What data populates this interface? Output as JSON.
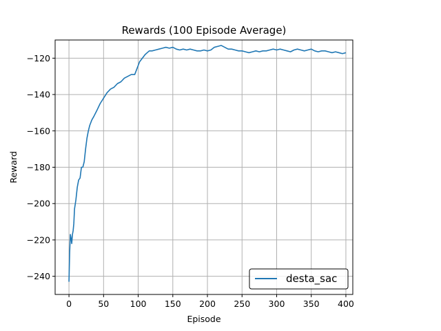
{
  "chart_data": {
    "type": "line",
    "title": "Rewards (100 Episode Average)",
    "xlabel": "Episode",
    "ylabel": "Reward",
    "xlim": [
      -20,
      410
    ],
    "ylim": [
      -250,
      -110
    ],
    "xticks": [
      0,
      50,
      100,
      150,
      200,
      250,
      300,
      350,
      400
    ],
    "yticks": [
      -240,
      -220,
      -200,
      -180,
      -160,
      -140,
      -120
    ],
    "xtick_labels": [
      "0",
      "50",
      "100",
      "150",
      "200",
      "250",
      "300",
      "350",
      "400"
    ],
    "ytick_labels": [
      "−240",
      "−220",
      "−200",
      "−180",
      "−160",
      "−140",
      "−120"
    ],
    "grid": true,
    "legend_position": "lower-right",
    "series": [
      {
        "name": "desta_sac",
        "color": "#1f77b4",
        "x": [
          0,
          1,
          2,
          3,
          4,
          5,
          6,
          7,
          8,
          10,
          12,
          14,
          16,
          18,
          20,
          22,
          24,
          26,
          28,
          30,
          33,
          36,
          40,
          45,
          50,
          55,
          60,
          65,
          70,
          75,
          80,
          85,
          90,
          95,
          98,
          100,
          102,
          104,
          106,
          108,
          110,
          113,
          116,
          120,
          125,
          130,
          135,
          140,
          145,
          150,
          155,
          160,
          165,
          170,
          175,
          180,
          185,
          190,
          195,
          200,
          205,
          210,
          215,
          220,
          225,
          230,
          235,
          240,
          245,
          250,
          255,
          260,
          265,
          270,
          275,
          280,
          285,
          290,
          295,
          300,
          305,
          310,
          315,
          320,
          325,
          330,
          335,
          340,
          345,
          350,
          355,
          360,
          365,
          370,
          375,
          380,
          385,
          390,
          395,
          400
        ],
        "values": [
          -243,
          -227,
          -217,
          -219,
          -222,
          -217,
          -215,
          -211,
          -203,
          -198,
          -191,
          -187,
          -186,
          -180,
          -180,
          -177,
          -170,
          -164,
          -160,
          -157,
          -154,
          -152,
          -149,
          -145,
          -142,
          -139,
          -137,
          -136,
          -134,
          -133,
          -131,
          -130,
          -129,
          -129,
          -126,
          -124,
          -122,
          -121,
          -120,
          -119,
          -118,
          -117,
          -116,
          -116,
          -115.5,
          -115,
          -114.5,
          -114,
          -114.5,
          -114,
          -115,
          -115.5,
          -115,
          -115.5,
          -115,
          -115.5,
          -116,
          -116,
          -115.5,
          -116,
          -115.5,
          -114,
          -113.5,
          -113,
          -114,
          -115,
          -115,
          -115.5,
          -116,
          -116,
          -116.5,
          -117,
          -116.5,
          -116,
          -116.5,
          -116,
          -116,
          -115.5,
          -115,
          -115.5,
          -115,
          -115.5,
          -116,
          -116.5,
          -115.5,
          -115,
          -115.5,
          -116,
          -115.5,
          -115,
          -116,
          -116.5,
          -116,
          -116,
          -116.5,
          -117,
          -116.5,
          -117,
          -117.5,
          -117
        ]
      }
    ]
  }
}
